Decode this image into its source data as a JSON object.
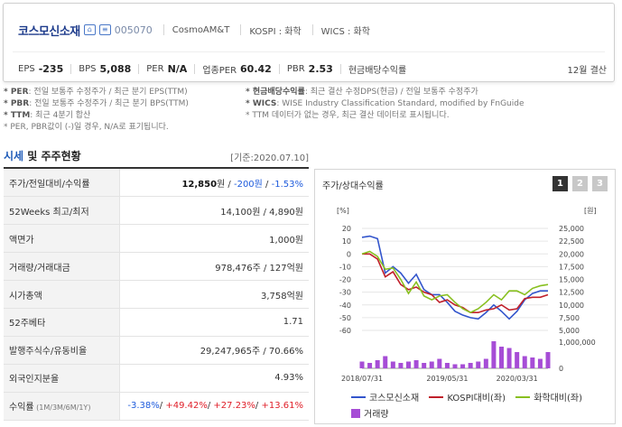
{
  "header": {
    "company_name": "코스모신소재",
    "icon1": "home-icon",
    "icon2": "document-icon",
    "code": "005070",
    "group": "CosmoAM&T",
    "market": "KOSPI : 화학",
    "wics": "WICS : 화학",
    "metrics": [
      {
        "label": "EPS",
        "value": "-235"
      },
      {
        "label": "BPS",
        "value": "5,088"
      },
      {
        "label": "PER",
        "value": "N/A"
      },
      {
        "label": "업종PER",
        "value": "60.42"
      },
      {
        "label": "PBR",
        "value": "2.53"
      },
      {
        "label": "현금배당수익률",
        "value": ""
      }
    ],
    "settlement": "12월 결산"
  },
  "notes": {
    "left": [
      {
        "key": "* PER",
        "text": ": 전일 보통주 수정주가 / 최근 분기 EPS(TTM)"
      },
      {
        "key": "* PBR",
        "text": ": 전일 보통주 수정주가 / 최근 분기 BPS(TTM)"
      },
      {
        "key": "* TTM",
        "text": ": 최근 4분기 합산"
      },
      {
        "key": "",
        "text": "* PER, PBR값이 (-)일 경우, N/A로 표기됩니다."
      }
    ],
    "right": [
      {
        "key": "* 현금배당수익률",
        "text": ": 최근 결산 수정DPS(현금) / 전일 보통주 수정주가"
      },
      {
        "key": "* WICS",
        "text": ": WISE Industry Classification Standard, modified by FnGuide"
      },
      {
        "key": "",
        "text": "* TTM 데이터가 없는 경우, 최근 결산 데이터로 표시됩니다."
      }
    ]
  },
  "section": {
    "title_accent": "시세",
    "title_rest": " 및 주주현황",
    "base_date": "[기준:2020.07.10]"
  },
  "table": {
    "rows": [
      {
        "label": "주가/전일대비/수익률",
        "parts": [
          {
            "t": "12,850",
            "c": "bold"
          },
          {
            "t": "원 / ",
            "c": ""
          },
          {
            "t": "-200원",
            "c": "neg"
          },
          {
            "t": " / ",
            "c": ""
          },
          {
            "t": "-1.53%",
            "c": "neg"
          }
        ]
      },
      {
        "label": "52Weeks 최고/최저",
        "parts": [
          {
            "t": "14,100원 / 4,890원",
            "c": ""
          }
        ]
      },
      {
        "label": "액면가",
        "parts": [
          {
            "t": "1,000원",
            "c": ""
          }
        ]
      },
      {
        "label": "거래량/거래대금",
        "parts": [
          {
            "t": "978,476주 / 127억원",
            "c": ""
          }
        ]
      },
      {
        "label": "시가총액",
        "parts": [
          {
            "t": "3,758억원",
            "c": ""
          }
        ]
      },
      {
        "label": "52주베타",
        "parts": [
          {
            "t": "1.71",
            "c": ""
          }
        ]
      },
      {
        "label": "발행주식수/유동비율",
        "parts": [
          {
            "t": "29,247,965주 / 70.66%",
            "c": ""
          }
        ]
      },
      {
        "label": "외국인지분율",
        "parts": [
          {
            "t": "4.93%",
            "c": ""
          }
        ]
      },
      {
        "label": "수익률",
        "sub": " (1M/3M/6M/1Y)",
        "parts": [
          {
            "t": "-3.38%",
            "c": "neg"
          },
          {
            "t": "/ ",
            "c": ""
          },
          {
            "t": "+49.42%",
            "c": "pos"
          },
          {
            "t": "/ ",
            "c": ""
          },
          {
            "t": "+27.23%",
            "c": "pos"
          },
          {
            "t": "/ ",
            "c": ""
          },
          {
            "t": "+13.61%",
            "c": "pos"
          }
        ]
      }
    ]
  },
  "chart_panel": {
    "title": "주가/상대수익률",
    "pages": [
      "1",
      "2",
      "3"
    ],
    "active_page": "1"
  },
  "chart_data": {
    "type": "line",
    "left_axis_label": "[%]",
    "right_axis_label": "[원]",
    "left_ticks": [
      20,
      10,
      0,
      -10,
      -20,
      -30,
      -40,
      -50,
      -60
    ],
    "right_ticks": [
      "25,000",
      "22,500",
      "20,000",
      "17,500",
      "15,000",
      "12,500",
      "10,000",
      "7,500",
      "5,000"
    ],
    "volume_ticks": [
      "1,000,000",
      "0"
    ],
    "x_labels": [
      "2018/07/31",
      "2019/05/31",
      "2020/03/31"
    ],
    "ylim": [
      -60,
      25
    ],
    "x": [
      0,
      1,
      2,
      3,
      4,
      5,
      6,
      7,
      8,
      9,
      10,
      11,
      12,
      13,
      14,
      15,
      16,
      17,
      18,
      19,
      20,
      21,
      22,
      23,
      24
    ],
    "series": [
      {
        "name": "코스모신소재",
        "color": "#3355cc",
        "values": [
          13,
          14,
          12,
          -15,
          -10,
          -15,
          -23,
          -16,
          -28,
          -32,
          -32,
          -38,
          -45,
          -48,
          -50,
          -51,
          -46,
          -40,
          -45,
          -51,
          -45,
          -36,
          -31,
          -29,
          -29
        ]
      },
      {
        "name": "KOSPI대비(좌)",
        "color": "#c0202a",
        "values": [
          0,
          0,
          -4,
          -18,
          -14,
          -24,
          -28,
          -26,
          -30,
          -32,
          -38,
          -36,
          -40,
          -42,
          -46,
          -46,
          -44,
          -43,
          -40,
          -44,
          -43,
          -35,
          -34,
          -34,
          -32
        ]
      },
      {
        "name": "화학대비(좌)",
        "color": "#88c020",
        "values": [
          0,
          2,
          -2,
          -12,
          -11,
          -20,
          -31,
          -22,
          -33,
          -36,
          -33,
          -32,
          -38,
          -43,
          -46,
          -43,
          -38,
          -32,
          -36,
          -29,
          -29,
          -32,
          -27,
          -25,
          -24
        ]
      }
    ],
    "volume": {
      "name": "거래량",
      "color": "#a64dd6",
      "values": [
        0.25,
        0.2,
        0.3,
        0.45,
        0.25,
        0.2,
        0.25,
        0.3,
        0.2,
        0.25,
        0.35,
        0.2,
        0.15,
        0.15,
        0.2,
        0.25,
        0.35,
        1.0,
        0.8,
        0.75,
        0.6,
        0.45,
        0.4,
        0.35,
        0.6
      ]
    }
  }
}
